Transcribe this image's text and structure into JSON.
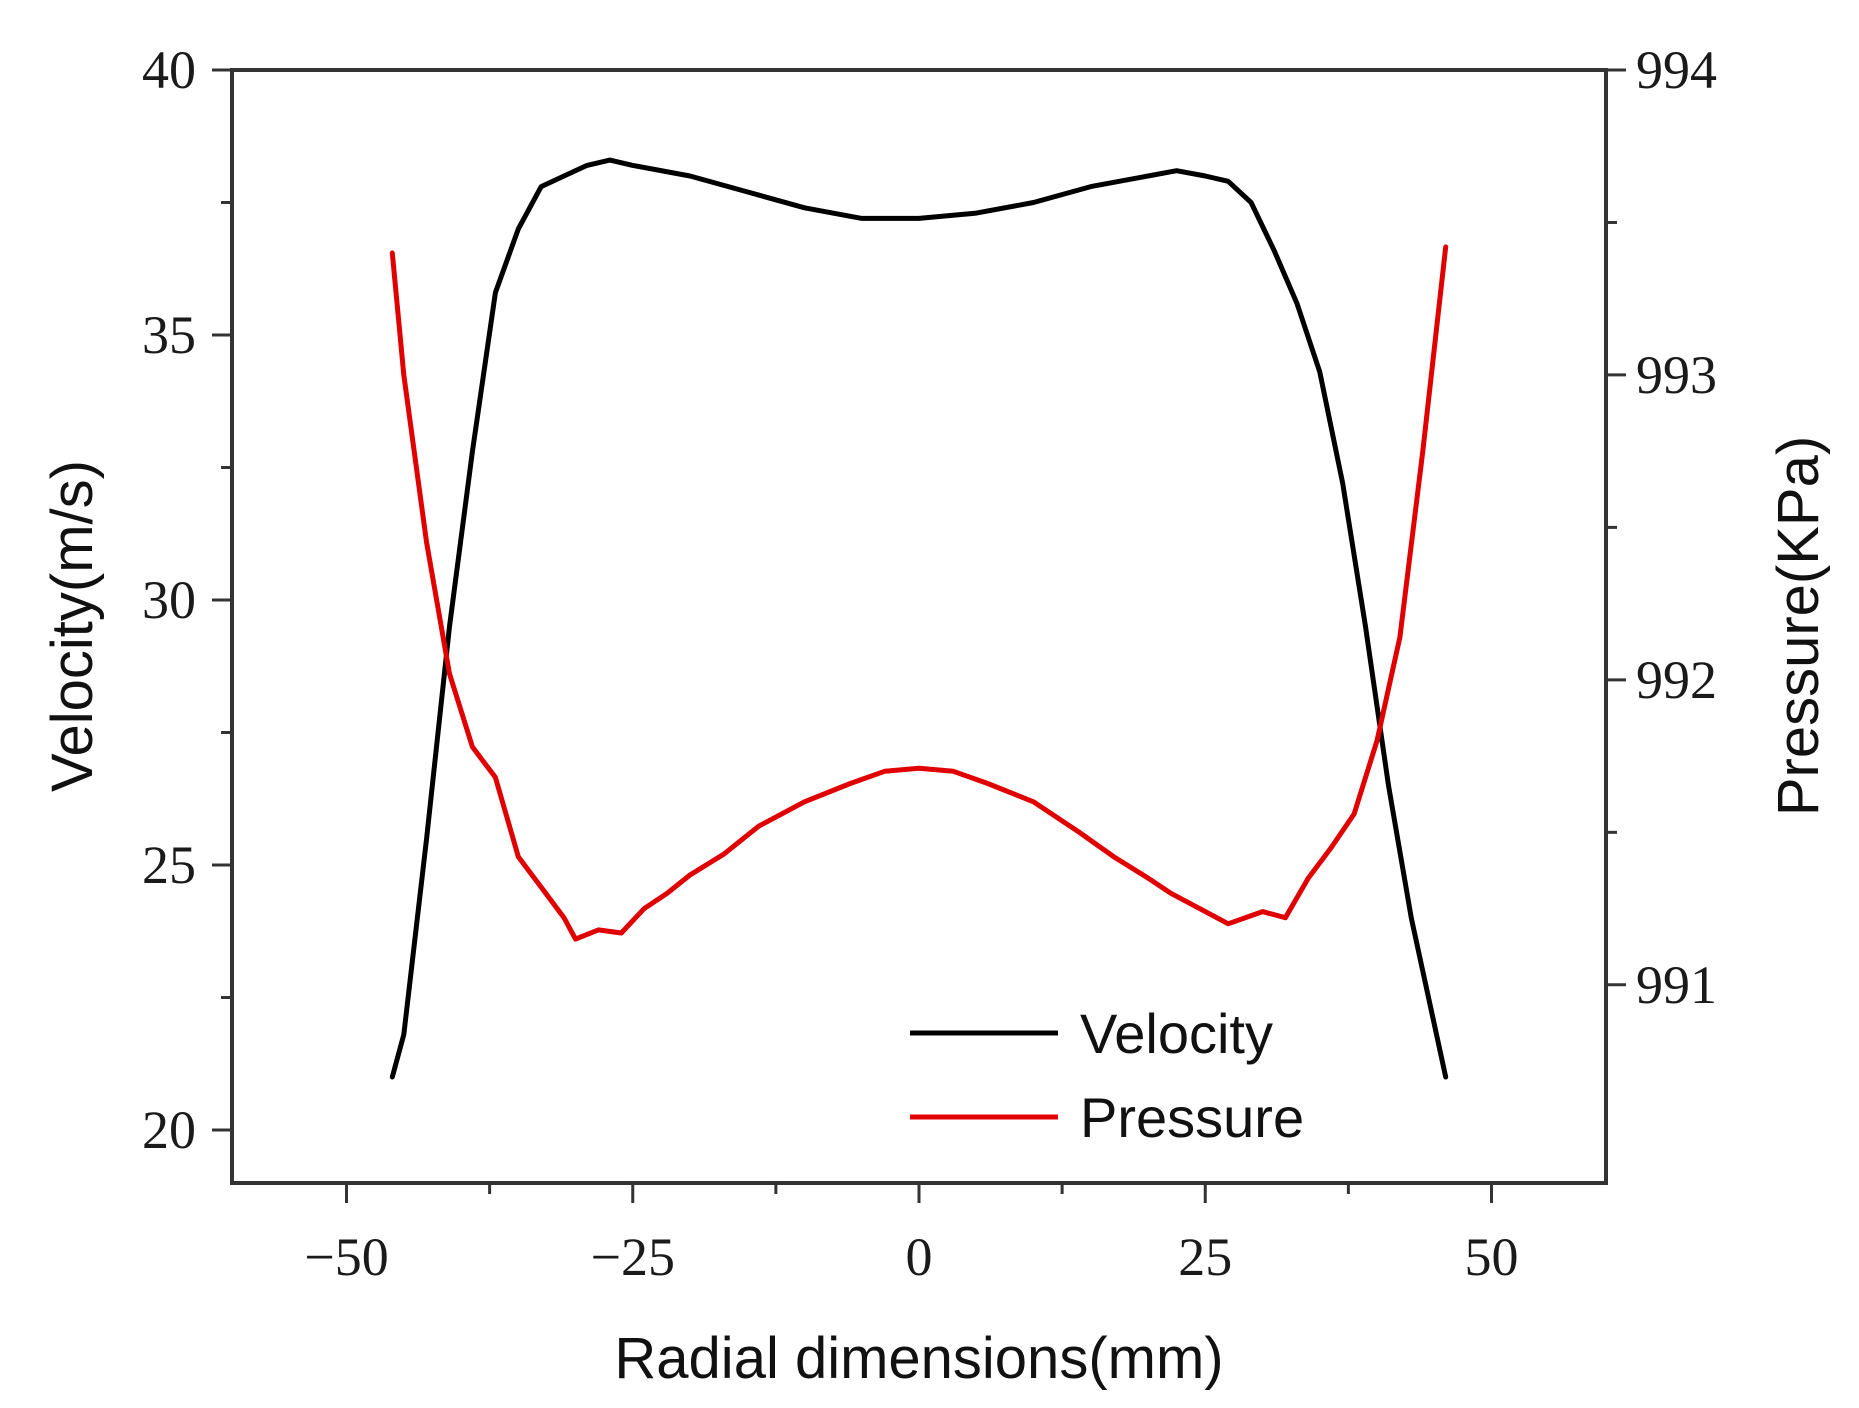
{
  "chart_data": {
    "type": "line",
    "title": "",
    "xlabel": "Radial dimensions(mm)",
    "ylabel": "Velocity(m/s)",
    "y2label": "Pressure(KPa)",
    "xlim": [
      -60,
      60
    ],
    "ylim": [
      19,
      40
    ],
    "y2lim": [
      990.35,
      994
    ],
    "xticks": [
      -50,
      -25,
      0,
      25,
      50
    ],
    "xtick_labels": [
      "−50",
      "−25",
      "0",
      "25",
      "50"
    ],
    "yticks": [
      20,
      25,
      30,
      35,
      40
    ],
    "ytick_labels": [
      "20",
      "25",
      "30",
      "35",
      "40"
    ],
    "y2ticks": [
      991,
      992,
      993,
      994
    ],
    "y2tick_labels": [
      "991",
      "992",
      "993",
      "994"
    ],
    "grid": false,
    "legend_position": "bottom-right",
    "series": [
      {
        "name": "Velocity",
        "axis": "left",
        "color": "#000000",
        "x": [
          -46,
          -45,
          -43,
          -41,
          -39,
          -37,
          -35,
          -33,
          -31,
          -29,
          -27,
          -25,
          -20,
          -15,
          -10,
          -5,
          0,
          5,
          10,
          15,
          20,
          22.5,
          25,
          27,
          29,
          31,
          33,
          35,
          37,
          39,
          41,
          43,
          44.5,
          46
        ],
        "y": [
          21,
          21.8,
          25.5,
          29.5,
          32.8,
          35.8,
          37,
          37.8,
          38,
          38.2,
          38.3,
          38.2,
          38,
          37.7,
          37.4,
          37.2,
          37.2,
          37.3,
          37.5,
          37.8,
          38,
          38.1,
          38,
          37.9,
          37.5,
          36.6,
          35.6,
          34.3,
          32.2,
          29.5,
          26.5,
          24,
          22.5,
          21
        ]
      },
      {
        "name": "Pressure",
        "axis": "right",
        "color": "#e00000",
        "x": [
          -46,
          -45,
          -43,
          -41,
          -39,
          -37,
          -35,
          -33,
          -31,
          -30,
          -28,
          -26,
          -24,
          -22,
          -20,
          -17,
          -14,
          -10,
          -6,
          -3,
          0,
          3,
          6,
          10,
          14,
          17,
          20,
          22,
          25,
          27,
          30,
          32,
          34,
          36,
          38,
          40,
          42,
          44,
          46
        ],
        "y": [
          993.4,
          993,
          992.45,
          992.02,
          991.78,
          991.68,
          991.42,
          991.32,
          991.22,
          991.15,
          991.18,
          991.17,
          991.25,
          991.3,
          991.36,
          991.43,
          991.52,
          991.6,
          991.66,
          991.7,
          991.71,
          991.7,
          991.66,
          991.6,
          991.5,
          991.42,
          991.35,
          991.3,
          991.24,
          991.2,
          991.24,
          991.22,
          991.35,
          991.45,
          991.56,
          991.8,
          992.14,
          992.75,
          993.42
        ]
      }
    ]
  }
}
